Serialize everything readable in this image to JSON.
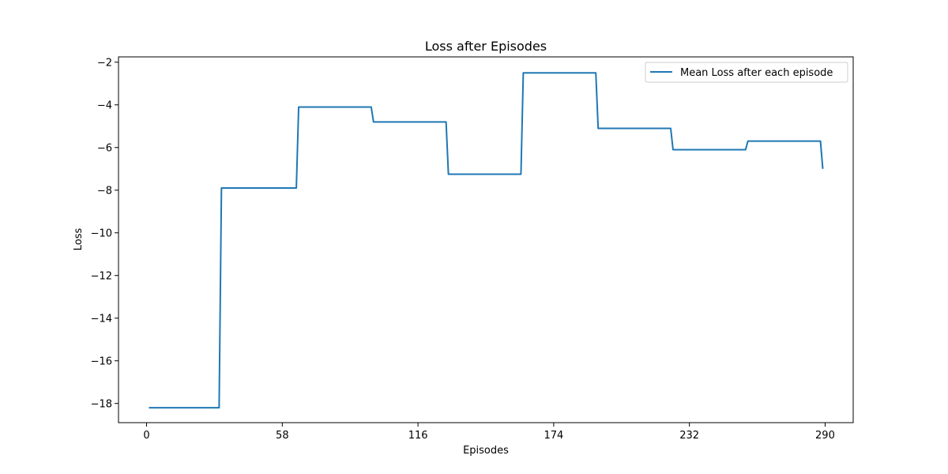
{
  "chart_data": {
    "type": "line",
    "title": "Loss after Episodes",
    "xlabel": "Episodes",
    "ylabel": "Loss",
    "xlim": [
      -12,
      302
    ],
    "ylim": [
      -18.9,
      -1.75
    ],
    "xticks": [
      0,
      58,
      116,
      174,
      232,
      290
    ],
    "yticks": [
      -18,
      -16,
      -14,
      -12,
      -10,
      -8,
      -6,
      -4,
      -2
    ],
    "grid": false,
    "legend_location": "upper right",
    "series": [
      {
        "name": "Mean Loss after each episode",
        "color": "#1f77b4",
        "x": [
          1,
          31,
          32,
          64,
          65,
          96,
          97,
          128,
          129,
          160,
          161,
          192,
          193,
          224,
          225,
          256,
          257,
          288,
          289
        ],
        "y": [
          -18.2,
          -18.2,
          -7.9,
          -7.9,
          -4.1,
          -4.1,
          -4.8,
          -4.8,
          -7.25,
          -7.25,
          -2.5,
          -2.5,
          -5.1,
          -5.1,
          -6.1,
          -6.1,
          -5.7,
          -5.7,
          -7.0
        ]
      }
    ]
  }
}
